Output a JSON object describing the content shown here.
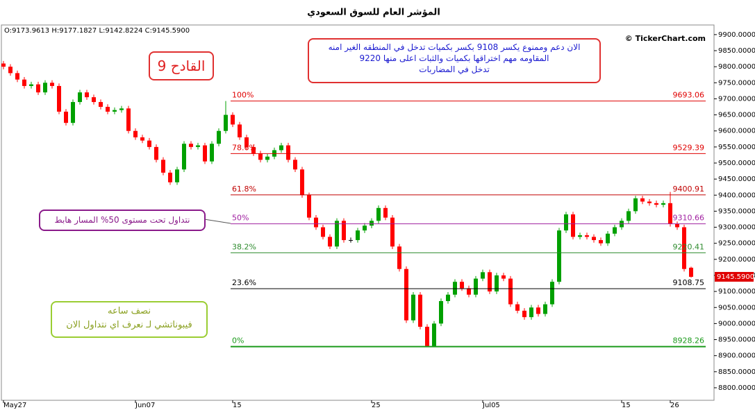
{
  "chart_data": {
    "type": "candlestick",
    "title": "المؤشر العام للسوق السعودي",
    "ohlc_text": "O:9173.9613  H:9177.1827  L:9142.8224  C:9145.5900",
    "watermark": "© TickerChart.com",
    "ylim": [
      8761,
      9930
    ],
    "yticks": [
      {
        "value": 8800,
        "label": "8800.0000"
      },
      {
        "value": 8850,
        "label": "8850.0000"
      },
      {
        "value": 8900,
        "label": "8900.0000"
      },
      {
        "value": 8950,
        "label": "8950.0000"
      },
      {
        "value": 9000,
        "label": "9000.0000"
      },
      {
        "value": 9050,
        "label": "9050.0000"
      },
      {
        "value": 9100,
        "label": "9100.0000"
      },
      {
        "value": 9150,
        "label": "9150.0000"
      },
      {
        "value": 9200,
        "label": "9200.0000"
      },
      {
        "value": 9250,
        "label": "9250.0000"
      },
      {
        "value": 9300,
        "label": "9300.0000"
      },
      {
        "value": 9350,
        "label": "9350.0000"
      },
      {
        "value": 9400,
        "label": "9400.0000"
      },
      {
        "value": 9450,
        "label": "9450.0000"
      },
      {
        "value": 9500,
        "label": "9500.0000"
      },
      {
        "value": 9550,
        "label": "9550.0000"
      },
      {
        "value": 9600,
        "label": "9600.0000"
      },
      {
        "value": 9650,
        "label": "9650.0000"
      },
      {
        "value": 9700,
        "label": "9700.0000"
      },
      {
        "value": 9750,
        "label": "9750.0000"
      },
      {
        "value": 9800,
        "label": "9800.0000"
      },
      {
        "value": 9850,
        "label": "9850.0000"
      },
      {
        "value": 9900,
        "label": "9900.0000"
      }
    ],
    "xticks": [
      {
        "value": 0,
        "label": "May27"
      },
      {
        "value": 19,
        "label": "Jun07"
      },
      {
        "value": 33,
        "label": "15"
      },
      {
        "value": 53,
        "label": "25"
      },
      {
        "value": 69,
        "label": "Jul05"
      },
      {
        "value": 89,
        "label": "15"
      },
      {
        "value": 96,
        "label": "26"
      }
    ],
    "up_color": "#00a000",
    "down_color": "#ff0000",
    "open": [
      9810,
      9800,
      9780,
      9760,
      9740,
      9745,
      9720,
      9750,
      9740,
      9660,
      9625,
      9690,
      9720,
      9705,
      9690,
      9675,
      9660,
      9665,
      9670,
      9600,
      9580,
      9570,
      9550,
      9510,
      9470,
      9440,
      9480,
      9560,
      9550,
      9555,
      9505,
      9560,
      9600,
      9650,
      9620,
      9580,
      9550,
      9530,
      9510,
      9520,
      9540,
      9555,
      9510,
      9480,
      9400,
      9330,
      9300,
      9270,
      9240,
      9320,
      9260,
      9260,
      9290,
      9305,
      9320,
      9360,
      9330,
      9240,
      9170,
      9010,
      9090,
      8990,
      8930,
      9000,
      9070,
      9090,
      9130,
      9110,
      9090,
      9140,
      9160,
      9100,
      9150,
      9140,
      9060,
      9040,
      9020,
      9050,
      9030,
      9060,
      9130,
      9290,
      9340,
      9270,
      9275,
      9270,
      9260,
      9250,
      9280,
      9300,
      9320,
      9350,
      9390,
      9380,
      9375,
      9370,
      9375,
      9310,
      9300,
      9173.9613
    ],
    "high": [
      9818,
      9808,
      9788,
      9768,
      9753,
      9753,
      9758,
      9758,
      9748,
      9668,
      9698,
      9728,
      9728,
      9713,
      9698,
      9683,
      9673,
      9678,
      9678,
      9608,
      9588,
      9578,
      9558,
      9518,
      9478,
      9488,
      9568,
      9568,
      9563,
      9563,
      9568,
      9608,
      9693,
      9658,
      9628,
      9588,
      9558,
      9538,
      9528,
      9548,
      9563,
      9563,
      9518,
      9488,
      9408,
      9338,
      9308,
      9278,
      9328,
      9328,
      9268,
      9298,
      9313,
      9328,
      9368,
      9368,
      9338,
      9248,
      9178,
      9098,
      9098,
      8998,
      9008,
      9078,
      9098,
      9138,
      9138,
      9118,
      9148,
      9168,
      9168,
      9158,
      9158,
      9148,
      9068,
      9048,
      9058,
      9058,
      9068,
      9138,
      9298,
      9348,
      9348,
      9283,
      9283,
      9278,
      9268,
      9288,
      9308,
      9328,
      9358,
      9398,
      9398,
      9388,
      9383,
      9383,
      9410,
      9318,
      9308,
      9177.1827
    ],
    "low": [
      9792,
      9772,
      9752,
      9732,
      9732,
      9712,
      9712,
      9732,
      9652,
      9617,
      9617,
      9682,
      9697,
      9682,
      9667,
      9652,
      9652,
      9657,
      9592,
      9572,
      9562,
      9542,
      9502,
      9462,
      9432,
      9432,
      9472,
      9542,
      9542,
      9497,
      9497,
      9552,
      9592,
      9612,
      9572,
      9542,
      9522,
      9502,
      9502,
      9512,
      9532,
      9502,
      9472,
      9392,
      9322,
      9292,
      9262,
      9232,
      9232,
      9252,
      9252,
      9252,
      9282,
      9297,
      9312,
      9322,
      9232,
      9162,
      9002,
      9002,
      8982,
      8928,
      8928,
      8992,
      9062,
      9082,
      9102,
      9082,
      9082,
      9132,
      9092,
      9092,
      9132,
      9052,
      9032,
      9012,
      9012,
      9022,
      9022,
      9052,
      9122,
      9282,
      9262,
      9262,
      9262,
      9252,
      9242,
      9242,
      9272,
      9292,
      9312,
      9342,
      9372,
      9367,
      9362,
      9362,
      9302,
      9292,
      9162,
      9142.8224
    ],
    "close": [
      9800,
      9780,
      9760,
      9740,
      9745,
      9720,
      9750,
      9740,
      9660,
      9625,
      9690,
      9720,
      9705,
      9690,
      9675,
      9660,
      9665,
      9670,
      9600,
      9580,
      9570,
      9550,
      9510,
      9470,
      9440,
      9480,
      9560,
      9550,
      9555,
      9505,
      9560,
      9600,
      9650,
      9620,
      9580,
      9550,
      9530,
      9510,
      9520,
      9540,
      9555,
      9510,
      9480,
      9400,
      9330,
      9300,
      9270,
      9240,
      9320,
      9260,
      9260,
      9290,
      9305,
      9320,
      9360,
      9330,
      9240,
      9170,
      9010,
      9090,
      8990,
      8930,
      9000,
      9070,
      9090,
      9130,
      9110,
      9090,
      9140,
      9160,
      9100,
      9150,
      9140,
      9060,
      9040,
      9020,
      9050,
      9030,
      9060,
      9130,
      9290,
      9340,
      9270,
      9275,
      9270,
      9260,
      9250,
      9280,
      9300,
      9320,
      9350,
      9390,
      9380,
      9375,
      9370,
      9375,
      9310,
      9300,
      9170,
      9145.59
    ],
    "last_price": {
      "value": 9145.59,
      "label": "9145.5900"
    },
    "fib_start": 33,
    "fib_levels": [
      {
        "label": "100%",
        "value": 9693.06,
        "color": "#e00000"
      },
      {
        "label": "78.6%",
        "value": 9529.39,
        "color": "#e00000"
      },
      {
        "label": "61.8%",
        "value": 9400.91,
        "color": "#c00000"
      },
      {
        "label": "50%",
        "value": 9310.66,
        "color": "#a020a0"
      },
      {
        "label": "38.2%",
        "value": 9220.41,
        "color": "#2e8b2e"
      },
      {
        "label": "23.6%",
        "value": 9108.75,
        "color": "#000000"
      },
      {
        "label": "0%",
        "value": 8928.26,
        "color": "#1a9a1a"
      }
    ],
    "annotations": {
      "trigger": "القادح 9",
      "note_lines": [
        "الان دعم وممنوع يكسر 9108 بكسر بكميات تدخل في المنطقه الغير امنه",
        "المقاومه مهم اختراقها بكميات والثبات اعلى منها 9220",
        "تدخل في المضاربات"
      ],
      "trend": "نتداول تحت مستوى 50% المسار هابط",
      "timeframe": [
        "نصف ساعه",
        "فيبوناتشي لـ نعرف اي نتداول الان"
      ]
    }
  }
}
